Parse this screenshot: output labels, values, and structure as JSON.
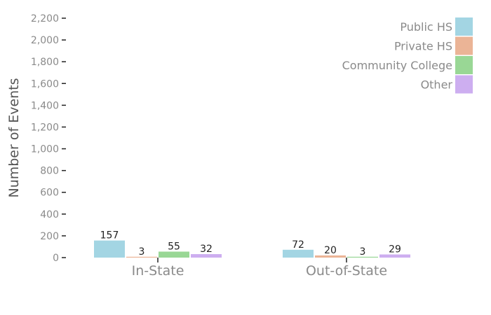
{
  "chart_data": {
    "type": "bar",
    "categories": [
      "In-State",
      "Out-of-State"
    ],
    "series": [
      {
        "name": "Public HS",
        "values": [
          157,
          72
        ],
        "color": "#a3d5e3"
      },
      {
        "name": "Private HS",
        "values": [
          3,
          20
        ],
        "color": "#ebb496"
      },
      {
        "name": "Community College",
        "values": [
          55,
          3
        ],
        "color": "#99d795"
      },
      {
        "name": "Other",
        "values": [
          32,
          29
        ],
        "color": "#cdaef0"
      }
    ],
    "ylabel": "Number of Events",
    "ylim": [
      0,
      2200
    ],
    "yticks": [
      0,
      200,
      400,
      600,
      800,
      1000,
      1200,
      1400,
      1600,
      1800,
      2000,
      2200
    ],
    "ytick_labels": [
      "0",
      "200",
      "400",
      "600",
      "800",
      "1,000",
      "1,200",
      "1,400",
      "1,600",
      "1,800",
      "2,000",
      "2,200"
    ],
    "grid": false,
    "legend": "top-right",
    "data_labels": true
  }
}
